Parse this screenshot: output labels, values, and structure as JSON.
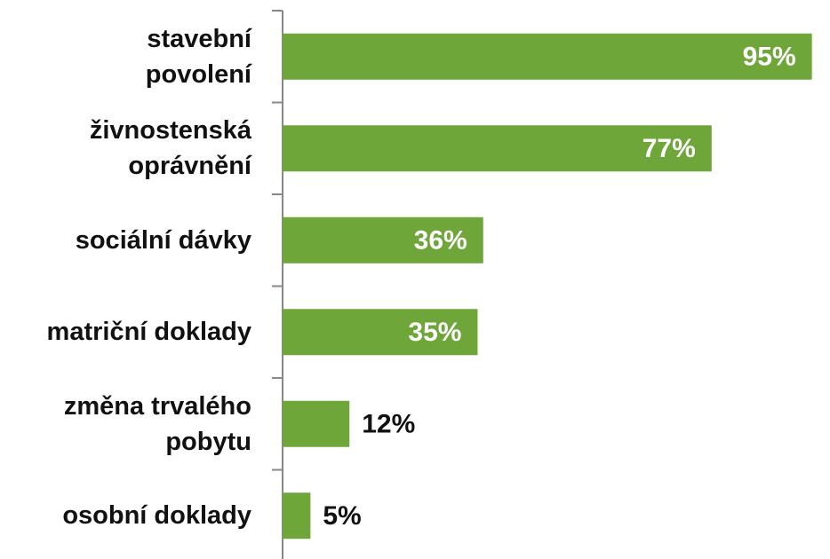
{
  "chart_data": {
    "type": "hbar",
    "categories": [
      "stavební\npovolení",
      "živnostenská\noprávnění",
      "sociální dávky",
      "matriční doklady",
      "změna trvalého\npobytu",
      "osobní doklady"
    ],
    "values": [
      95,
      77,
      36,
      35,
      12,
      5
    ],
    "value_labels": [
      "95%",
      "77%",
      "36%",
      "35%",
      "12%",
      "5%"
    ],
    "color": "#6fa63a",
    "xlim": [
      0,
      100
    ]
  }
}
